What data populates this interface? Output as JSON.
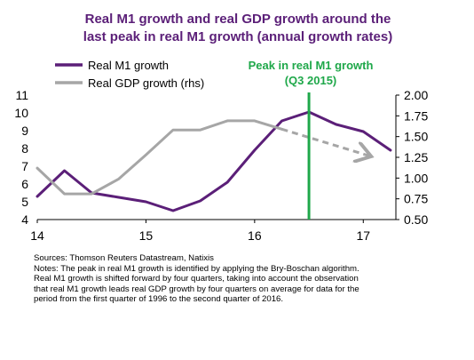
{
  "chart_data": {
    "type": "line",
    "title_lines": [
      "Real M1 growth and real GDP growth around the",
      "last peak in real M1 growth (annual growth rates)"
    ],
    "x_axis": {
      "ticks": [
        "14",
        "15",
        "16",
        "17"
      ],
      "tick_values": [
        14,
        15,
        16,
        17
      ],
      "range": [
        14,
        17.3
      ]
    },
    "y_left": {
      "ticks": [
        "4",
        "5",
        "6",
        "7",
        "8",
        "9",
        "10",
        "11"
      ],
      "range": [
        4,
        11
      ]
    },
    "y_right": {
      "ticks": [
        "0.50",
        "0.75",
        "1.00",
        "1.25",
        "1.50",
        "1.75",
        "2.00"
      ],
      "range": [
        0.5,
        2.0
      ]
    },
    "series": [
      {
        "name": "Real M1 growth",
        "axis": "left",
        "color": "#5b1f78",
        "x": [
          14.0,
          14.25,
          14.5,
          14.75,
          15.0,
          15.25,
          15.5,
          15.75,
          16.0,
          16.25,
          16.5,
          16.75,
          17.0,
          17.25
        ],
        "y": [
          5.3,
          6.75,
          5.5,
          5.25,
          5.0,
          4.5,
          5.05,
          6.1,
          7.9,
          9.55,
          10.05,
          9.35,
          8.95,
          7.9
        ]
      },
      {
        "name": "Real GDP growth (rhs)",
        "axis": "right",
        "color": "#a6a6a6",
        "x": [
          14.0,
          14.25,
          14.5,
          14.75,
          15.0,
          15.25,
          15.5,
          15.75,
          16.0,
          16.25
        ],
        "y": [
          1.12,
          0.81,
          0.81,
          0.99,
          1.28,
          1.58,
          1.58,
          1.69,
          1.69,
          1.59
        ]
      }
    ],
    "forecast": {
      "color": "#a6a6a6",
      "x": [
        16.25,
        17.05
      ],
      "y": [
        1.59,
        1.27
      ],
      "axis": "right"
    },
    "annotation": {
      "label_lines": [
        "Peak in real M1 growth",
        "(Q3 2015)"
      ],
      "x": 16.5,
      "color": "#1fa84a"
    },
    "legend": [
      {
        "label": "Real M1 growth",
        "color": "#5b1f78"
      },
      {
        "label": "Real GDP growth (rhs)",
        "color": "#a6a6a6"
      }
    ],
    "grid": false
  },
  "notes": {
    "sources": "Sources: Thomson Reuters Datastream, Natixis",
    "lines": [
      "Notes: The peak in real M1 growth is identified by applying the Bry-Boschan algorithm.",
      "Real M1 growth is shifted forward by four quarters, taking into account the observation",
      "that real M1 growth leads real GDP growth by four quarters on average for data for the",
      "period from the first quarter of 1996 to the second quarter of 2016."
    ]
  }
}
